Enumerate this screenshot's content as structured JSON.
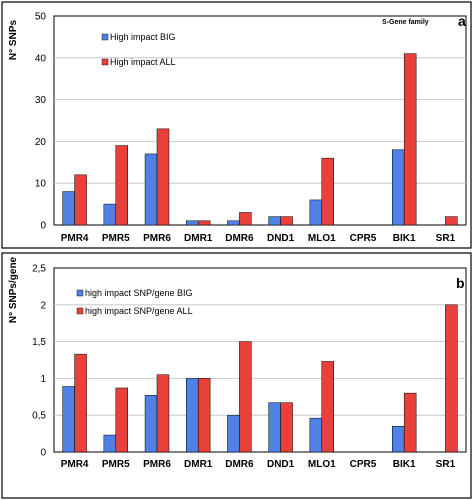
{
  "chart_data": [
    {
      "type": "bar",
      "panel_label": "a",
      "title": "S-Gene family",
      "ylabel": "N° SNPs",
      "xlabel": "",
      "ylim": [
        0,
        50
      ],
      "yticks": [
        "0",
        "10",
        "20",
        "30",
        "40",
        "50"
      ],
      "ytick_values": [
        0,
        10,
        20,
        30,
        40,
        50
      ],
      "grid": true,
      "legend_position": "top-left",
      "categories": [
        "PMR4",
        "PMR5",
        "PMR6",
        "DMR1",
        "DMR6",
        "DND1",
        "MLO1",
        "CPR5",
        "BIK1",
        "SR1"
      ],
      "series": [
        {
          "name": "High impact BIG",
          "color": "#4f81e6",
          "values": [
            8,
            5,
            17,
            1,
            1,
            2,
            6,
            0,
            18,
            0
          ]
        },
        {
          "name": "High impact ALL",
          "color": "#e8413c",
          "values": [
            12,
            19,
            23,
            1,
            3,
            2,
            16,
            0,
            41,
            2
          ]
        }
      ]
    },
    {
      "type": "bar",
      "panel_label": "b",
      "title": "",
      "ylabel": "N° SNPs/gene",
      "xlabel": "",
      "ylim": [
        0,
        2.5
      ],
      "yticks": [
        "0",
        "0,5",
        "1",
        "1,5",
        "2",
        "2,5"
      ],
      "ytick_values": [
        0,
        0.5,
        1,
        1.5,
        2,
        2.5
      ],
      "grid": true,
      "legend_position": "top-left",
      "categories": [
        "PMR4",
        "PMR5",
        "PMR6",
        "DMR1",
        "DMR6",
        "DND1",
        "MLO1",
        "CPR5",
        "BIK1",
        "SR1"
      ],
      "series": [
        {
          "name": "high impact SNP/gene BIG",
          "color": "#4f81e6",
          "values": [
            0.89,
            0.23,
            0.77,
            1.0,
            0.5,
            0.67,
            0.46,
            0,
            0.35,
            0
          ]
        },
        {
          "name": "high impact SNP/gene ALL",
          "color": "#e8413c",
          "values": [
            1.33,
            0.87,
            1.05,
            1.0,
            1.5,
            0.67,
            1.23,
            0,
            0.8,
            2.0
          ]
        }
      ]
    }
  ]
}
